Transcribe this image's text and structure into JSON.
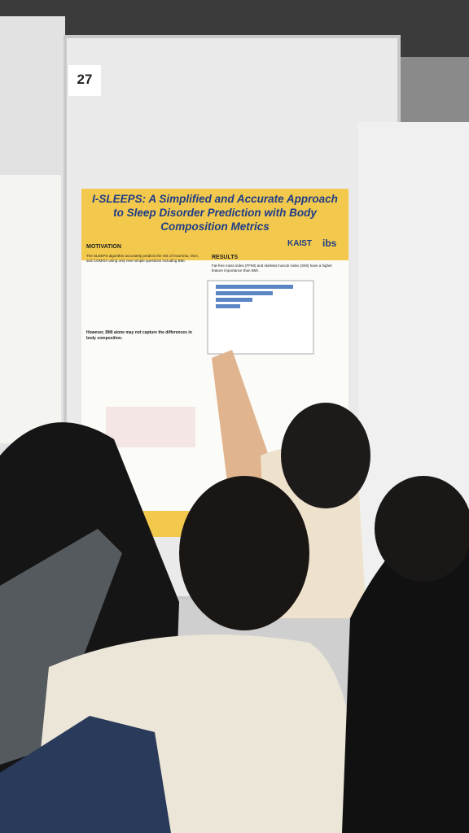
{
  "board_number": "27",
  "poster": {
    "title": "I-SLEEPS: A Simplified and Accurate Approach to Sleep Disorder Prediction with Body Composition Metrics",
    "logos": [
      "KAIST",
      "ibs"
    ],
    "sections": [
      {
        "heading": "MOTIVATION",
        "text": "The SLEEPS algorithm accurately predicts the risk of insomnia, OSA, and COMISA using only nine simple questions including BMI."
      },
      {
        "heading": "RESULTS",
        "text": "Fat-free mass index (FFMI) and skeletal muscle index (SMI) have a higher feature importance than BMI."
      }
    ],
    "subheading": "However, BMI alone may not capture the differences in body composition."
  }
}
